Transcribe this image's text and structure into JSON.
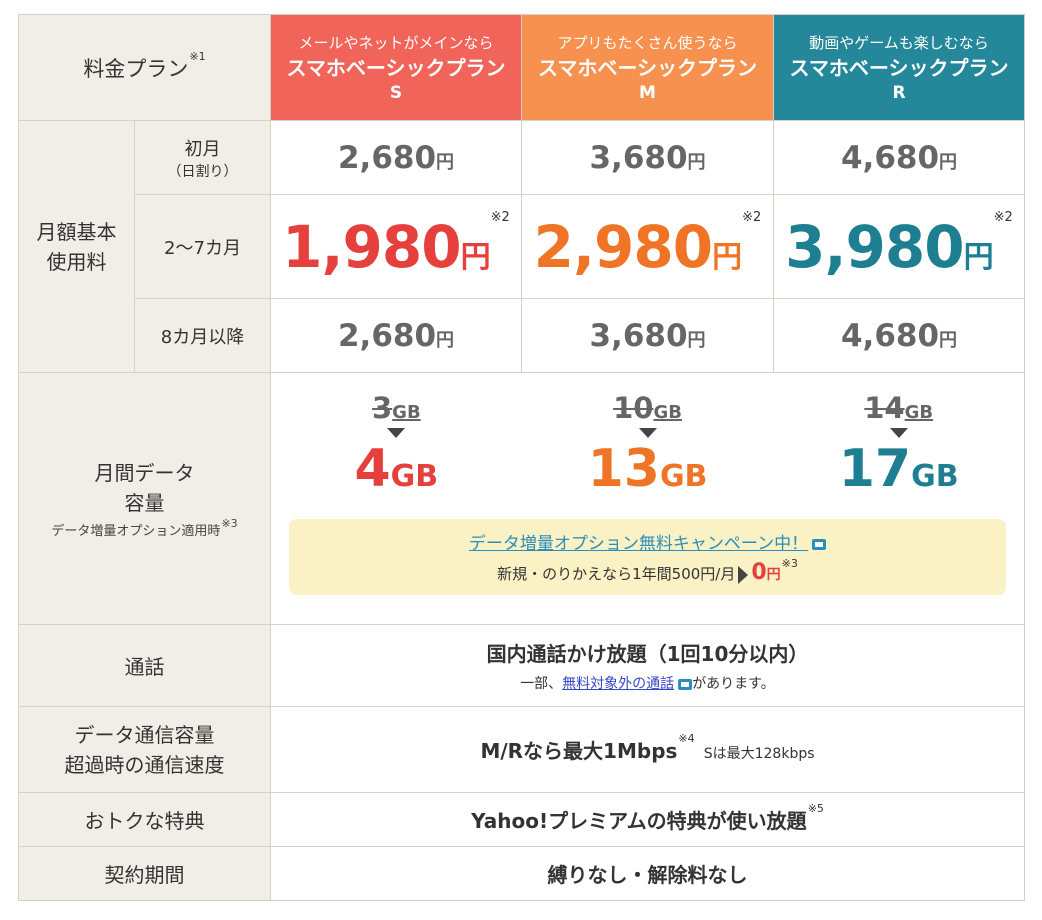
{
  "header": {
    "plan_label": "料金プラン",
    "plan_note": "※1",
    "plans": [
      {
        "tag": "メールやネットがメインなら",
        "name": "スマホベーシックプラン",
        "letter": "S",
        "color": "#f0645a"
      },
      {
        "tag": "アプリもたくさん使うなら",
        "name": "スマホベーシックプラン",
        "letter": "M",
        "color": "#f6914f"
      },
      {
        "tag": "動画やゲームも楽しむなら",
        "name": "スマホベーシックプラン",
        "letter": "R",
        "color": "#24879a"
      }
    ]
  },
  "monthly": {
    "label_line1": "月額基本",
    "label_line2": "使用料",
    "first_month": {
      "label": "初月",
      "sublabel": "（日割り）",
      "prices": [
        "2,680",
        "3,680",
        "4,680"
      ],
      "unit": "円"
    },
    "months_2_7": {
      "label": "2〜7カ月",
      "prices": [
        "1,980",
        "2,980",
        "3,980"
      ],
      "unit": "円",
      "note": "※2"
    },
    "month_8_plus": {
      "label": "8カ月以降",
      "prices": [
        "2,680",
        "3,680",
        "4,680"
      ],
      "unit": "円"
    }
  },
  "data": {
    "label_line1": "月間データ",
    "label_line2": "容量",
    "sublabel": "データ増量オプション適用時",
    "sublabel_note": "※3",
    "old": [
      "3",
      "10",
      "14"
    ],
    "new": [
      "4",
      "13",
      "17"
    ],
    "unit": "GB",
    "campaign_link": "データ増量オプション無料キャンペーン中！",
    "campaign_text": "新規・のりかえなら1年間500円/月",
    "campaign_zero": "0",
    "campaign_zero_unit": "円",
    "campaign_note": "※3"
  },
  "call": {
    "label": "通話",
    "main": "国内通話かけ放題（1回10分以内）",
    "sub_pre": "一部、",
    "sub_link": "無料対象外の通話",
    "sub_post": "があります。"
  },
  "speed": {
    "label_line1": "データ通信容量",
    "label_line2": "超過時の通信速度",
    "main": "M/Rなら最大1Mbps",
    "note": "※4",
    "sub": "Sは最大128kbps"
  },
  "benefit": {
    "label": "おトクな特典",
    "main": "Yahoo!プレミアムの特典が使い放題",
    "note": "※5"
  },
  "contract": {
    "label": "契約期間",
    "main": "縛りなし・解除料なし"
  }
}
